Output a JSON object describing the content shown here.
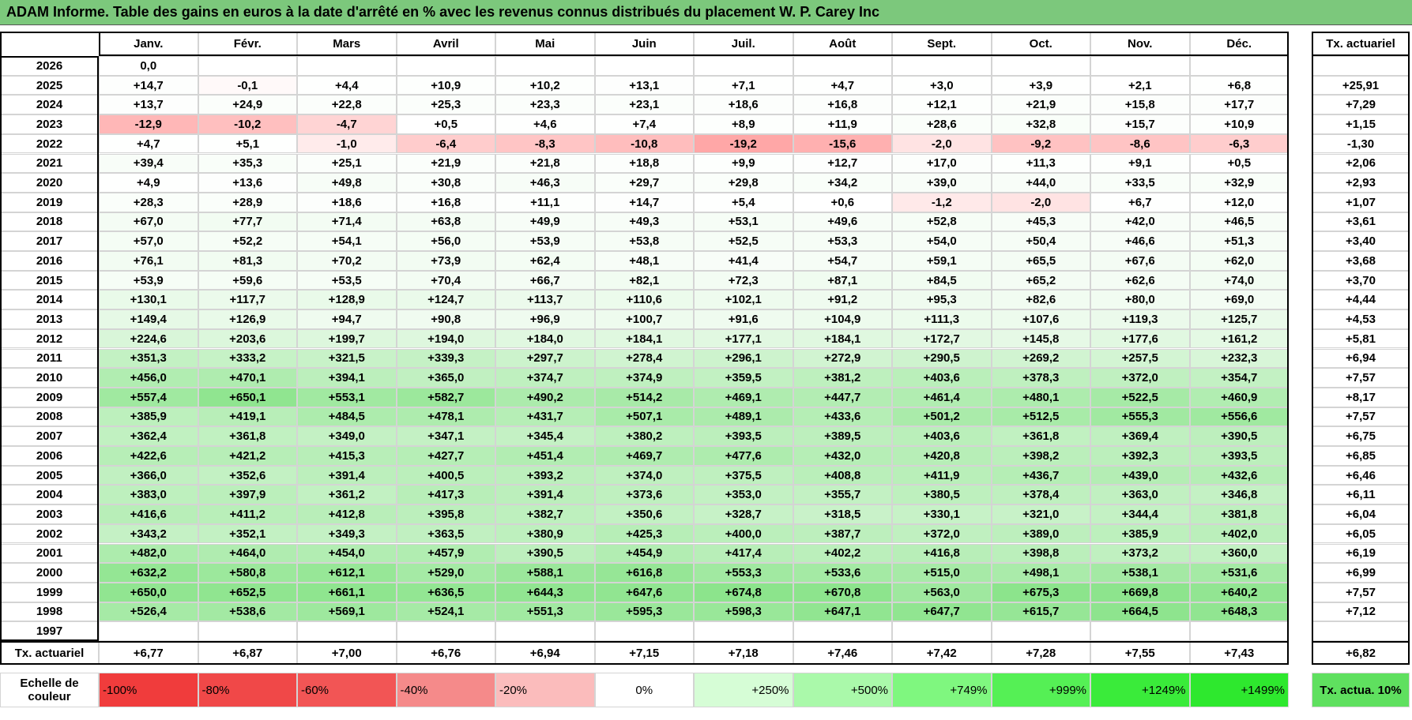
{
  "title": "ADAM Informe. Table des gains en euros à la date d'arrêté en % avec les revenus connus distribués du placement W. P. Carey Inc",
  "months": [
    "Janv.",
    "Févr.",
    "Mars",
    "Avril",
    "Mai",
    "Juin",
    "Juil.",
    "Août",
    "Sept.",
    "Oct.",
    "Nov.",
    "Déc."
  ],
  "rate_header": "Tx. actuariel",
  "rows": [
    {
      "year": "2026",
      "values": [
        "0,0",
        null,
        null,
        null,
        null,
        null,
        null,
        null,
        null,
        null,
        null,
        null
      ],
      "rate": null
    },
    {
      "year": "2025",
      "values": [
        "+14,7",
        "-0,1",
        "+4,4",
        "+10,9",
        "+10,2",
        "+13,1",
        "+7,1",
        "+4,7",
        "+3,0",
        "+3,9",
        "+2,1",
        "+6,8"
      ],
      "rate": "+25,91"
    },
    {
      "year": "2024",
      "values": [
        "+13,7",
        "+24,9",
        "+22,8",
        "+25,3",
        "+23,3",
        "+23,1",
        "+18,6",
        "+16,8",
        "+12,1",
        "+21,9",
        "+15,8",
        "+17,7"
      ],
      "rate": "+7,29"
    },
    {
      "year": "2023",
      "values": [
        "-12,9",
        "-10,2",
        "-4,7",
        "+0,5",
        "+4,6",
        "+7,4",
        "+8,9",
        "+11,9",
        "+28,6",
        "+32,8",
        "+15,7",
        "+10,9"
      ],
      "rate": "+1,15"
    },
    {
      "year": "2022",
      "values": [
        "+4,7",
        "+5,1",
        "-1,0",
        "-6,4",
        "-8,3",
        "-10,8",
        "-19,2",
        "-15,6",
        "-2,0",
        "-9,2",
        "-8,6",
        "-6,3"
      ],
      "rate": "-1,30"
    },
    {
      "year": "2021",
      "values": [
        "+39,4",
        "+35,3",
        "+25,1",
        "+21,9",
        "+21,8",
        "+18,8",
        "+9,9",
        "+12,7",
        "+17,0",
        "+11,3",
        "+9,1",
        "+0,5"
      ],
      "rate": "+2,06"
    },
    {
      "year": "2020",
      "values": [
        "+4,9",
        "+13,6",
        "+49,8",
        "+30,8",
        "+46,3",
        "+29,7",
        "+29,8",
        "+34,2",
        "+39,0",
        "+44,0",
        "+33,5",
        "+32,9"
      ],
      "rate": "+2,93"
    },
    {
      "year": "2019",
      "values": [
        "+28,3",
        "+28,9",
        "+18,6",
        "+16,8",
        "+11,1",
        "+14,7",
        "+5,4",
        "+0,6",
        "-1,2",
        "-2,0",
        "+6,7",
        "+12,0"
      ],
      "rate": "+1,07"
    },
    {
      "year": "2018",
      "values": [
        "+67,0",
        "+77,7",
        "+71,4",
        "+63,8",
        "+49,9",
        "+49,3",
        "+53,1",
        "+49,6",
        "+52,8",
        "+45,3",
        "+42,0",
        "+46,5"
      ],
      "rate": "+3,61"
    },
    {
      "year": "2017",
      "values": [
        "+57,0",
        "+52,2",
        "+54,1",
        "+56,0",
        "+53,9",
        "+53,8",
        "+52,5",
        "+53,3",
        "+54,0",
        "+50,4",
        "+46,6",
        "+51,3"
      ],
      "rate": "+3,40"
    },
    {
      "year": "2016",
      "values": [
        "+76,1",
        "+81,3",
        "+70,2",
        "+73,9",
        "+62,4",
        "+48,1",
        "+41,4",
        "+54,7",
        "+59,1",
        "+65,5",
        "+67,6",
        "+62,0"
      ],
      "rate": "+3,68"
    },
    {
      "year": "2015",
      "values": [
        "+53,9",
        "+59,6",
        "+53,5",
        "+70,4",
        "+66,7",
        "+82,1",
        "+72,3",
        "+87,1",
        "+84,5",
        "+65,2",
        "+62,6",
        "+74,0"
      ],
      "rate": "+3,70"
    },
    {
      "year": "2014",
      "values": [
        "+130,1",
        "+117,7",
        "+128,9",
        "+124,7",
        "+113,7",
        "+110,6",
        "+102,1",
        "+91,2",
        "+95,3",
        "+82,6",
        "+80,0",
        "+69,0"
      ],
      "rate": "+4,44"
    },
    {
      "year": "2013",
      "values": [
        "+149,4",
        "+126,9",
        "+94,7",
        "+90,8",
        "+96,9",
        "+100,7",
        "+91,6",
        "+104,9",
        "+111,3",
        "+107,6",
        "+119,3",
        "+125,7"
      ],
      "rate": "+4,53"
    },
    {
      "year": "2012",
      "values": [
        "+224,6",
        "+203,6",
        "+199,7",
        "+194,0",
        "+184,0",
        "+184,1",
        "+177,1",
        "+184,1",
        "+172,7",
        "+145,8",
        "+177,6",
        "+161,2"
      ],
      "rate": "+5,81"
    },
    {
      "year": "2011",
      "values": [
        "+351,3",
        "+333,2",
        "+321,5",
        "+339,3",
        "+297,7",
        "+278,4",
        "+296,1",
        "+272,9",
        "+290,5",
        "+269,2",
        "+257,5",
        "+232,3"
      ],
      "rate": "+6,94"
    },
    {
      "year": "2010",
      "values": [
        "+456,0",
        "+470,1",
        "+394,1",
        "+365,0",
        "+374,7",
        "+374,9",
        "+359,5",
        "+381,2",
        "+403,6",
        "+378,3",
        "+372,0",
        "+354,7"
      ],
      "rate": "+7,57"
    },
    {
      "year": "2009",
      "values": [
        "+557,4",
        "+650,1",
        "+553,1",
        "+582,7",
        "+490,2",
        "+514,2",
        "+469,1",
        "+447,7",
        "+461,4",
        "+480,1",
        "+522,5",
        "+460,9"
      ],
      "rate": "+8,17"
    },
    {
      "year": "2008",
      "values": [
        "+385,9",
        "+419,1",
        "+484,5",
        "+478,1",
        "+431,7",
        "+507,1",
        "+489,1",
        "+433,6",
        "+501,2",
        "+512,5",
        "+555,3",
        "+556,6"
      ],
      "rate": "+7,57"
    },
    {
      "year": "2007",
      "values": [
        "+362,4",
        "+361,8",
        "+349,0",
        "+347,1",
        "+345,4",
        "+380,2",
        "+393,5",
        "+389,5",
        "+403,6",
        "+361,8",
        "+369,4",
        "+390,5"
      ],
      "rate": "+6,75"
    },
    {
      "year": "2006",
      "values": [
        "+422,6",
        "+421,2",
        "+415,3",
        "+427,7",
        "+451,4",
        "+469,7",
        "+477,6",
        "+432,0",
        "+420,8",
        "+398,2",
        "+392,3",
        "+393,5"
      ],
      "rate": "+6,85"
    },
    {
      "year": "2005",
      "values": [
        "+366,0",
        "+352,6",
        "+391,4",
        "+400,5",
        "+393,2",
        "+374,0",
        "+375,5",
        "+408,8",
        "+411,9",
        "+436,7",
        "+439,0",
        "+432,6"
      ],
      "rate": "+6,46"
    },
    {
      "year": "2004",
      "values": [
        "+383,0",
        "+397,9",
        "+361,2",
        "+417,3",
        "+391,4",
        "+373,6",
        "+353,0",
        "+355,7",
        "+380,5",
        "+378,4",
        "+363,0",
        "+346,8"
      ],
      "rate": "+6,11"
    },
    {
      "year": "2003",
      "values": [
        "+416,6",
        "+411,2",
        "+412,8",
        "+395,8",
        "+382,7",
        "+350,6",
        "+328,7",
        "+318,5",
        "+330,1",
        "+321,0",
        "+344,4",
        "+381,8"
      ],
      "rate": "+6,04"
    },
    {
      "year": "2002",
      "values": [
        "+343,2",
        "+352,1",
        "+349,3",
        "+363,5",
        "+380,9",
        "+425,3",
        "+400,0",
        "+387,7",
        "+372,0",
        "+389,0",
        "+385,9",
        "+402,0"
      ],
      "rate": "+6,05"
    },
    {
      "year": "2001",
      "values": [
        "+482,0",
        "+464,0",
        "+454,0",
        "+457,9",
        "+390,5",
        "+454,9",
        "+417,4",
        "+402,2",
        "+416,8",
        "+398,8",
        "+373,2",
        "+360,0"
      ],
      "rate": "+6,19"
    },
    {
      "year": "2000",
      "values": [
        "+632,2",
        "+580,8",
        "+612,1",
        "+529,0",
        "+588,1",
        "+616,8",
        "+553,3",
        "+533,6",
        "+515,0",
        "+498,1",
        "+538,1",
        "+531,6"
      ],
      "rate": "+6,99"
    },
    {
      "year": "1999",
      "values": [
        "+650,0",
        "+652,5",
        "+661,1",
        "+636,5",
        "+644,3",
        "+647,6",
        "+674,8",
        "+670,8",
        "+563,0",
        "+675,3",
        "+669,8",
        "+640,2"
      ],
      "rate": "+7,57"
    },
    {
      "year": "1998",
      "values": [
        "+526,4",
        "+538,6",
        "+569,1",
        "+524,1",
        "+551,3",
        "+595,3",
        "+598,3",
        "+647,1",
        "+647,7",
        "+615,7",
        "+664,5",
        "+648,3"
      ],
      "rate": "+7,12"
    },
    {
      "year": "1997",
      "values": [
        null,
        null,
        null,
        null,
        null,
        null,
        null,
        null,
        null,
        null,
        null,
        null
      ],
      "rate": null
    }
  ],
  "footer": {
    "label": "Tx. actuariel",
    "values": [
      "+6,77",
      "+6,87",
      "+7,00",
      "+6,76",
      "+6,94",
      "+7,15",
      "+7,18",
      "+7,46",
      "+7,42",
      "+7,28",
      "+7,55",
      "+7,43"
    ],
    "rate": "+6,82"
  },
  "legend": {
    "label": "Echelle de couleur",
    "items": [
      {
        "label": "-100%",
        "color": "#f03c3c"
      },
      {
        "label": "-80%",
        "color": "#f04848"
      },
      {
        "label": "-60%",
        "color": "#f25555"
      },
      {
        "label": "-40%",
        "color": "#f58a8a"
      },
      {
        "label": "-20%",
        "color": "#fbbcbc"
      },
      {
        "label": "0%",
        "color": "#ffffff"
      },
      {
        "label": "+250%",
        "color": "#d6fdd6"
      },
      {
        "label": "+500%",
        "color": "#aaf9aa"
      },
      {
        "label": "+749%",
        "color": "#7ff77f"
      },
      {
        "label": "+999%",
        "color": "#55f055"
      },
      {
        "label": "+1249%",
        "color": "#3aeb3a"
      },
      {
        "label": "+1499%",
        "color": "#2ee82e"
      }
    ],
    "rate_label": "Tx. actua. 10%",
    "rate_color": "#5fe05f"
  }
}
